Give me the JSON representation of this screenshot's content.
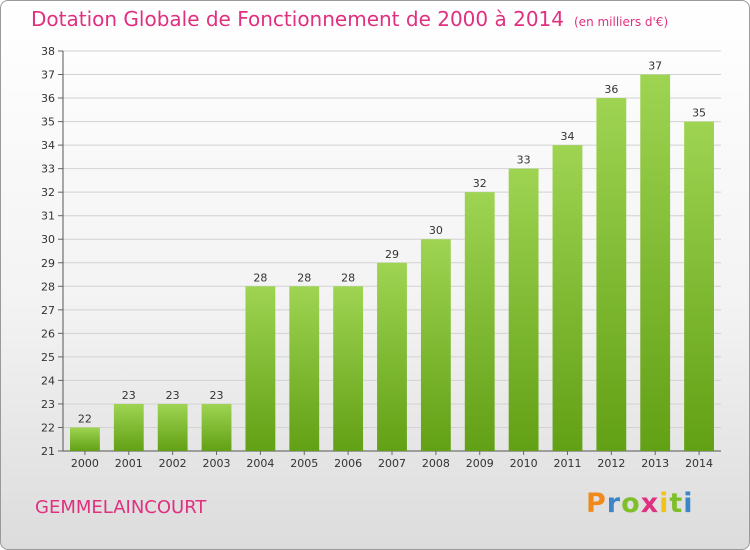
{
  "title": "Dotation Globale de Fonctionnement de 2000 à 2014",
  "subtitle": "(en milliers d'€)",
  "commune": "GEMMELAINCOURT",
  "logo": {
    "text": "Proxiti",
    "letters": [
      {
        "ch": "P",
        "color": "#f08a1c"
      },
      {
        "ch": "r",
        "color": "#3a86c8"
      },
      {
        "ch": "o",
        "color": "#7fbf2a"
      },
      {
        "ch": "x",
        "color": "#e0307f"
      },
      {
        "ch": "i",
        "color": "#f2c21a"
      },
      {
        "ch": "t",
        "color": "#7fbf2a"
      },
      {
        "ch": "i",
        "color": "#3a86c8"
      }
    ]
  },
  "colors": {
    "title": "#e0307f",
    "bar_top": "#9ed452",
    "bar_bottom": "#62a015",
    "grid": "#d2d2d2"
  },
  "chart_data": {
    "type": "bar",
    "categories": [
      "2000",
      "2001",
      "2002",
      "2003",
      "2004",
      "2005",
      "2006",
      "2007",
      "2008",
      "2009",
      "2010",
      "2011",
      "2012",
      "2013",
      "2014"
    ],
    "values": [
      22,
      23,
      23,
      23,
      28,
      28,
      28,
      29,
      30,
      32,
      33,
      34,
      36,
      37,
      35
    ],
    "ylim": [
      21,
      38
    ],
    "yticks": [
      21,
      22,
      23,
      24,
      25,
      26,
      27,
      28,
      29,
      30,
      31,
      32,
      33,
      34,
      35,
      36,
      37,
      38
    ],
    "grid": true,
    "xlabel": "",
    "ylabel": ""
  }
}
